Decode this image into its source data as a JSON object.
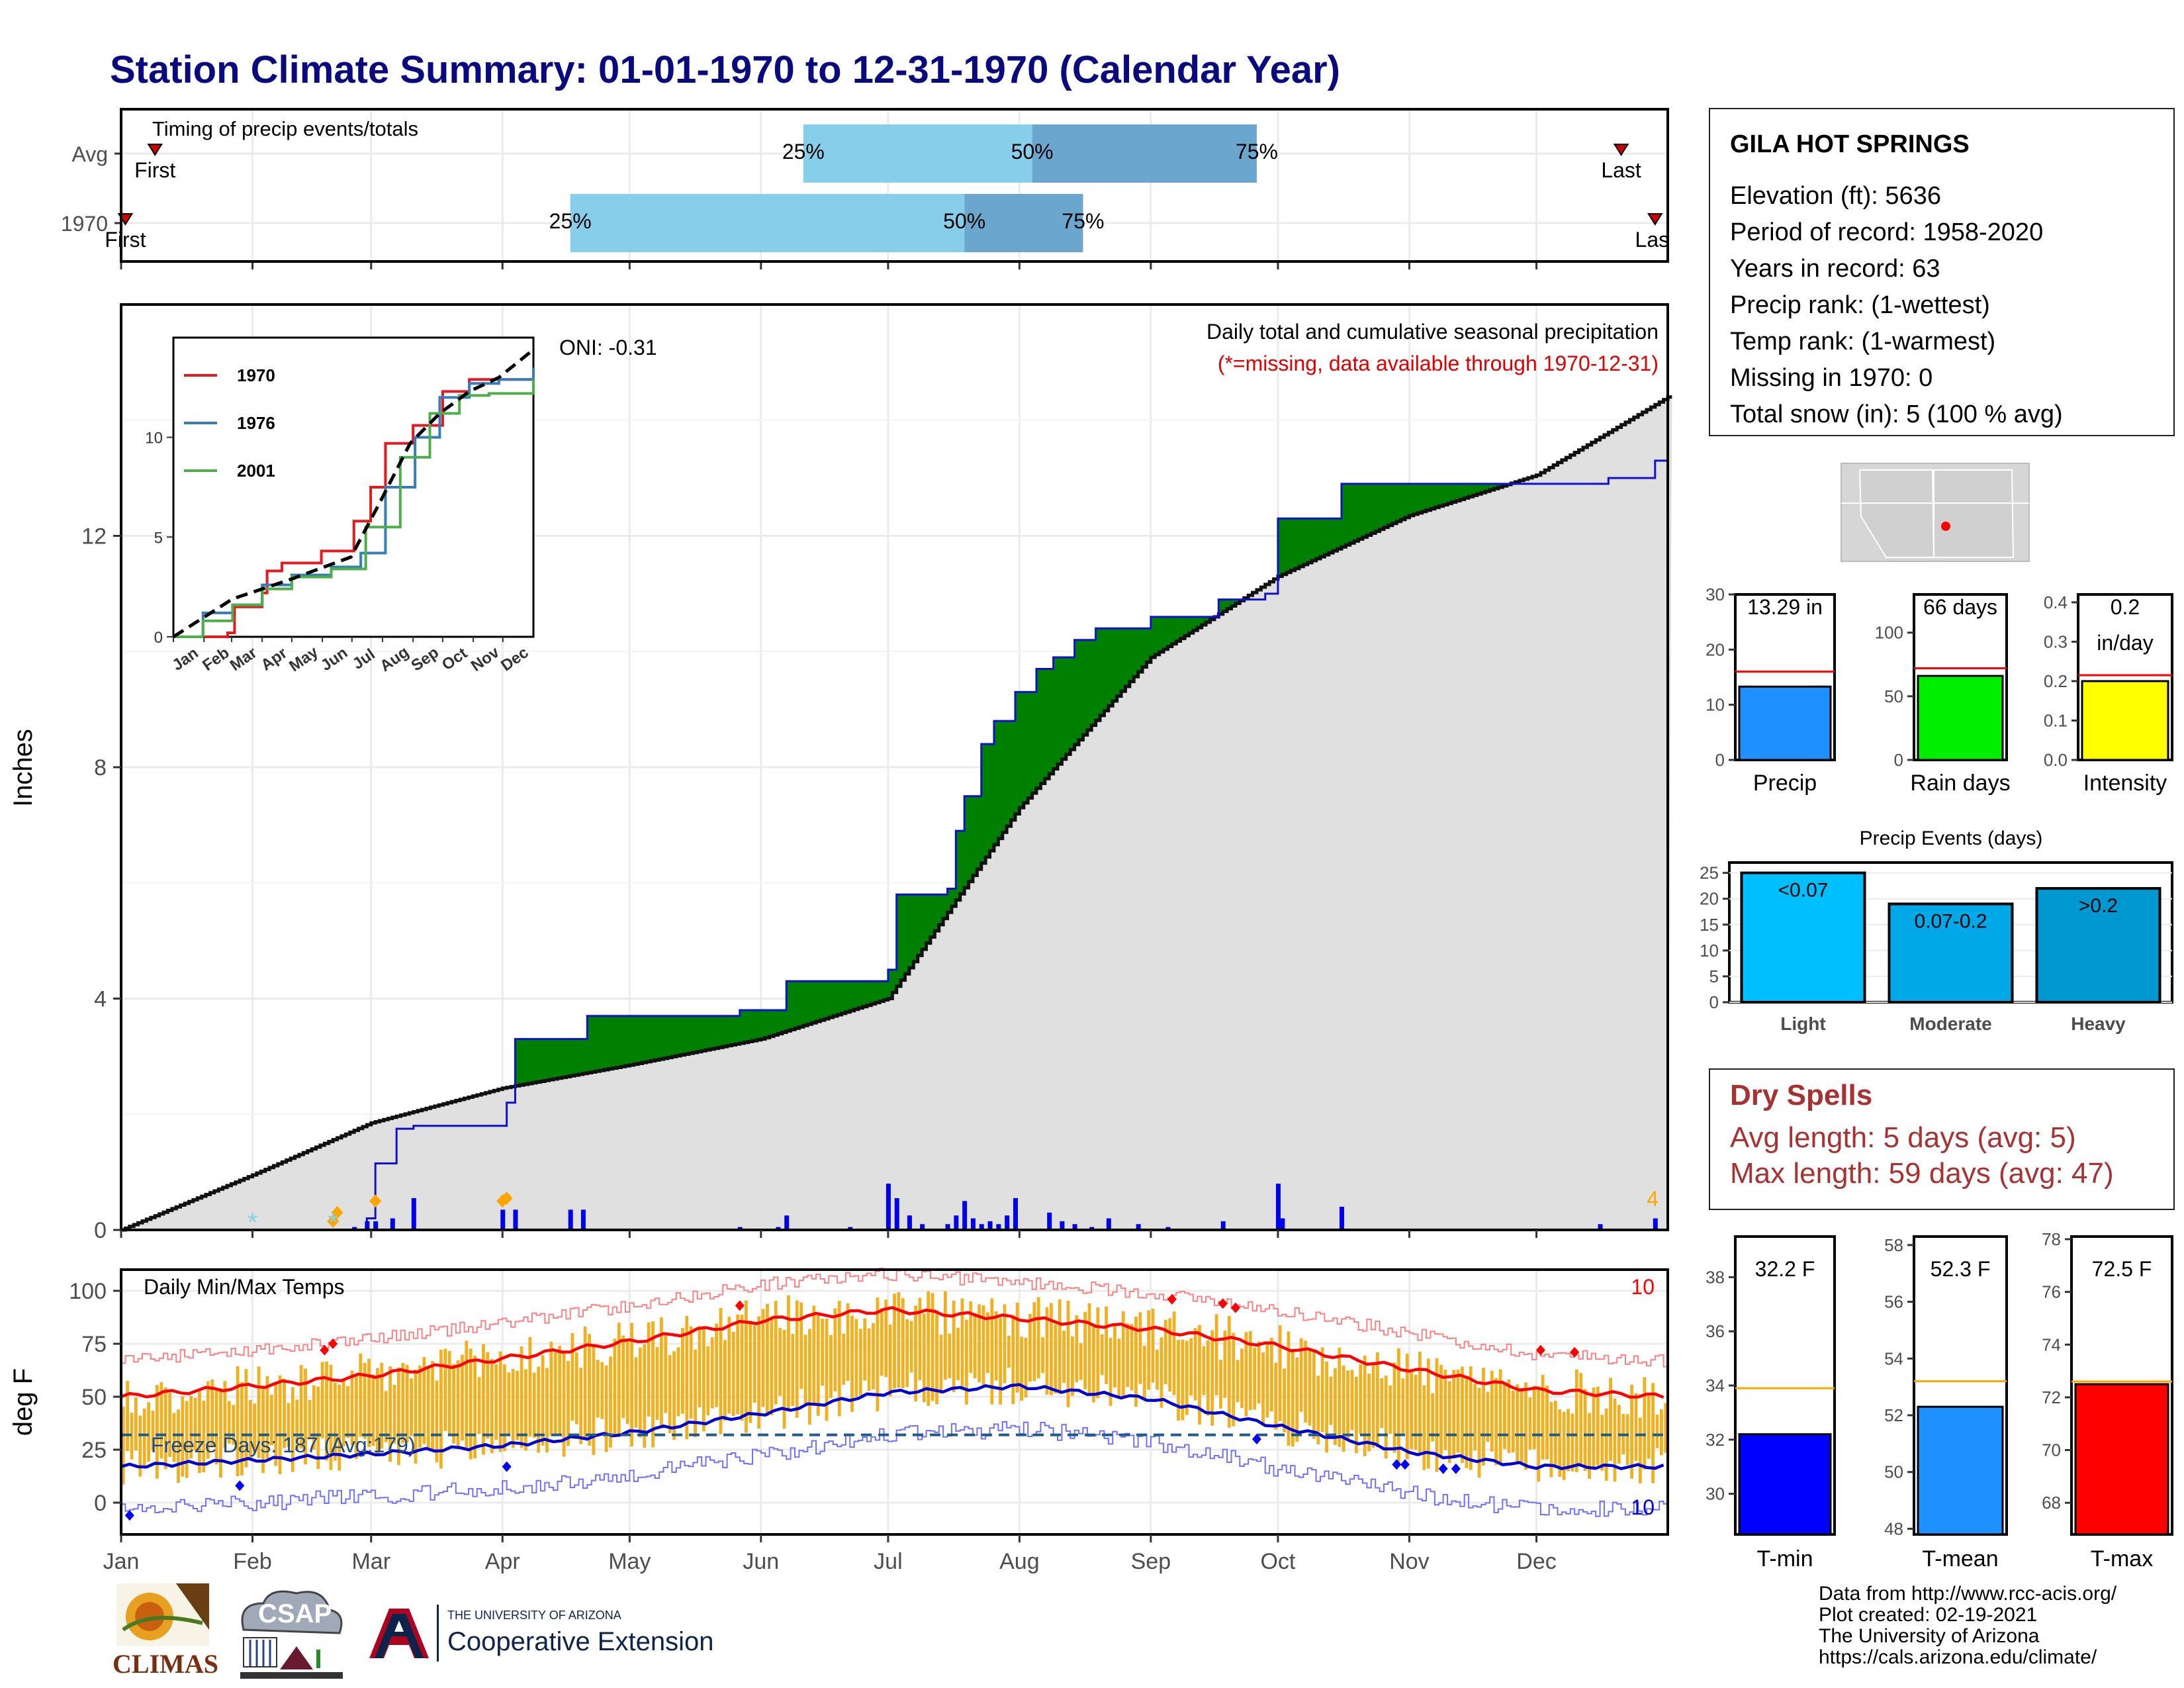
{
  "title": "Station Climate Summary: 01-01-1970 to 12-31-1970 (Calendar Year)",
  "station": {
    "name": "GILA HOT SPRINGS",
    "lines": [
      "Elevation (ft): 5636",
      "Period of record: 1958-2020",
      "Years in record: 63",
      "Precip rank:  (1-wettest)",
      "Temp rank:  (1-warmest)",
      "Missing in 1970: 0",
      "Total snow (in): 5 (100 % avg)"
    ]
  },
  "dry_spells": {
    "title": "Dry Spells",
    "avg_line": "Avg length: 5 days (avg: 5)",
    "max_line": "Max length: 59 days (avg: 47)"
  },
  "credits": [
    "Data from http://www.rcc-acis.org/",
    "Plot created: 02-19-2021",
    "The University of Arizona",
    "https://cals.arizona.edu/climate/"
  ],
  "logos": {
    "climas": "CLIMAS",
    "csap": "CSAP",
    "ua_small": "THE UNIVERSITY OF ARIZONA",
    "ua_big": "Cooperative Extension"
  },
  "colors": {
    "title": "#0a0a80",
    "wet": "#008000",
    "dry": "#7f5200",
    "normal_fill": "#e0e0e0",
    "cum_line": "#1010d0",
    "temp_bars": "#f0b020",
    "tmax_line": "#ff0000",
    "tmin_line": "#0000d0",
    "light_blue": "#87ceeb",
    "mid_blue": "#6aa6cd"
  },
  "chart_data": [
    {
      "id": "timing",
      "type": "bar",
      "title": "Timing of precip events/totals",
      "rows": [
        "Avg",
        "1970"
      ],
      "months": [
        "Jan",
        "Feb",
        "Mar",
        "Apr",
        "May",
        "Jun",
        "Jul",
        "Aug",
        "Sep",
        "Oct",
        "Nov",
        "Dec"
      ],
      "avg": {
        "first": 8,
        "p25": 161,
        "p50": 215,
        "p75": 268,
        "last": 354
      },
      "y1970": {
        "first": 1,
        "p25": 106,
        "p50": 199,
        "p75": 227,
        "last": 362
      },
      "labels": {
        "first": "First",
        "last": "Last",
        "p25": "25%",
        "p50": "50%",
        "p75": "75%"
      }
    },
    {
      "id": "precip_main",
      "type": "area",
      "title": "Daily total and cumulative seasonal precipitation",
      "subtitle": "(*=missing, data available through 1970-12-31)",
      "annotation": "ONI: -0.31",
      "count_label": "4",
      "ylabel": "Inches",
      "ylim": [
        0,
        16
      ],
      "yticks": [
        0,
        4,
        8,
        12
      ],
      "xticks": [
        "Jan",
        "Feb",
        "Mar",
        "Apr",
        "May",
        "Jun",
        "Jul",
        "Aug",
        "Sep",
        "Oct",
        "Nov",
        "Dec"
      ],
      "normal_cumulative": {
        "days": [
          0,
          31,
          59,
          90,
          120,
          151,
          181,
          212,
          243,
          273,
          304,
          334,
          365
        ],
        "values": [
          0,
          0.95,
          1.85,
          2.45,
          2.85,
          3.3,
          4.0,
          7.3,
          9.9,
          11.3,
          12.35,
          13.05,
          14.4
        ]
      },
      "cumulative_1970": [
        [
          0,
          0
        ],
        [
          58,
          0.2
        ],
        [
          60,
          1.15
        ],
        [
          65,
          1.75
        ],
        [
          69,
          1.8
        ],
        [
          85,
          1.8
        ],
        [
          91,
          2.2
        ],
        [
          93,
          3.3
        ],
        [
          107,
          3.3
        ],
        [
          110,
          3.7
        ],
        [
          146,
          3.8
        ],
        [
          157,
          4.3
        ],
        [
          181,
          4.5
        ],
        [
          183,
          5.8
        ],
        [
          195,
          5.9
        ],
        [
          197,
          6.9
        ],
        [
          199,
          7.5
        ],
        [
          203,
          8.4
        ],
        [
          206,
          8.8
        ],
        [
          211,
          9.3
        ],
        [
          216,
          9.7
        ],
        [
          220,
          9.9
        ],
        [
          225,
          10.2
        ],
        [
          230,
          10.4
        ],
        [
          243,
          10.6
        ],
        [
          259,
          10.9
        ],
        [
          270,
          11.0
        ],
        [
          273,
          12.3
        ],
        [
          288,
          12.9
        ],
        [
          318,
          12.9
        ],
        [
          351,
          13.0
        ],
        [
          362,
          13.3
        ],
        [
          365,
          13.3
        ]
      ],
      "daily_events": [
        [
          51,
          0.02
        ],
        [
          55,
          0.05
        ],
        [
          58,
          0.15
        ],
        [
          60,
          0.15
        ],
        [
          64,
          0.2
        ],
        [
          69,
          0.55
        ],
        [
          90,
          0.35
        ],
        [
          93,
          0.35
        ],
        [
          106,
          0.35
        ],
        [
          109,
          0.35
        ],
        [
          146,
          0.05
        ],
        [
          155,
          0.05
        ],
        [
          157,
          0.25
        ],
        [
          172,
          0.05
        ],
        [
          181,
          0.8
        ],
        [
          183,
          0.55
        ],
        [
          186,
          0.25
        ],
        [
          189,
          0.1
        ],
        [
          195,
          0.1
        ],
        [
          197,
          0.25
        ],
        [
          199,
          0.5
        ],
        [
          201,
          0.2
        ],
        [
          203,
          0.1
        ],
        [
          205,
          0.15
        ],
        [
          207,
          0.1
        ],
        [
          209,
          0.25
        ],
        [
          211,
          0.55
        ],
        [
          219,
          0.3
        ],
        [
          222,
          0.15
        ],
        [
          225,
          0.1
        ],
        [
          229,
          0.05
        ],
        [
          233,
          0.2
        ],
        [
          240,
          0.1
        ],
        [
          247,
          0.05
        ],
        [
          260,
          0.15
        ],
        [
          273,
          0.8
        ],
        [
          274,
          0.2
        ],
        [
          288,
          0.4
        ],
        [
          349,
          0.1
        ],
        [
          362,
          0.2
        ]
      ],
      "snow_markers": [
        [
          50,
          0.15
        ],
        [
          51,
          0.3
        ],
        [
          60,
          0.5
        ],
        [
          90,
          0.5
        ],
        [
          91,
          0.55
        ]
      ],
      "missing_markers": [
        31,
        50
      ]
    },
    {
      "id": "inset",
      "type": "line",
      "ylim": [
        0,
        15
      ],
      "yticks": [
        0,
        5,
        10
      ],
      "xticks": [
        "Jan",
        "Feb",
        "Mar",
        "Apr",
        "May",
        "Jun",
        "Jul",
        "Aug",
        "Sep",
        "Oct",
        "Nov",
        "Dec"
      ],
      "series": [
        {
          "name": "1970",
          "color": "#e41a1c",
          "points": [
            [
              0,
              0
            ],
            [
              55,
              0.2
            ],
            [
              62,
              1.5
            ],
            [
              90,
              2.2
            ],
            [
              95,
              3.3
            ],
            [
              110,
              3.7
            ],
            [
              150,
              4.3
            ],
            [
              183,
              5.8
            ],
            [
              200,
              7.5
            ],
            [
              215,
              9.7
            ],
            [
              243,
              10.6
            ],
            [
              273,
              12.3
            ],
            [
              300,
              12.9
            ],
            [
              365,
              13.3
            ]
          ]
        },
        {
          "name": "1976",
          "color": "#377eb8",
          "points": [
            [
              0,
              0
            ],
            [
              30,
              1.2
            ],
            [
              60,
              1.6
            ],
            [
              90,
              2.6
            ],
            [
              120,
              3.1
            ],
            [
              160,
              3.5
            ],
            [
              190,
              4.2
            ],
            [
              215,
              7.5
            ],
            [
              245,
              10.0
            ],
            [
              270,
              12.0
            ],
            [
              300,
              12.7
            ],
            [
              330,
              12.9
            ],
            [
              365,
              13.5
            ]
          ]
        },
        {
          "name": "2001",
          "color": "#4daf4a",
          "points": [
            [
              0,
              0
            ],
            [
              30,
              0.8
            ],
            [
              60,
              1.6
            ],
            [
              90,
              2.4
            ],
            [
              120,
              3.0
            ],
            [
              160,
              3.4
            ],
            [
              195,
              5.5
            ],
            [
              230,
              9.0
            ],
            [
              260,
              11.2
            ],
            [
              290,
              12.1
            ],
            [
              320,
              12.2
            ],
            [
              365,
              12.9
            ]
          ]
        }
      ],
      "avg_dashed": [
        [
          0,
          0
        ],
        [
          60,
          1.9
        ],
        [
          120,
          2.9
        ],
        [
          180,
          4.0
        ],
        [
          210,
          6.8
        ],
        [
          240,
          9.7
        ],
        [
          270,
          11.2
        ],
        [
          300,
          12.3
        ],
        [
          330,
          13.0
        ],
        [
          365,
          14.4
        ]
      ]
    },
    {
      "id": "temps",
      "type": "bar",
      "title": "Daily Min/Max Temps",
      "ylabel": "deg F",
      "ylim": [
        -15,
        110
      ],
      "yticks": [
        0,
        25,
        50,
        75,
        100
      ],
      "xticks": [
        "Jan",
        "Feb",
        "Mar",
        "Apr",
        "May",
        "Jun",
        "Jul",
        "Aug",
        "Sep",
        "Oct",
        "Nov",
        "Dec"
      ],
      "freeze_label": "Freeze Days: 187 (Avg:179)",
      "freeze_line": 32,
      "record_high_count": "10",
      "record_low_count": "10",
      "tmax_avg": {
        "days": [
          0,
          31,
          59,
          90,
          120,
          151,
          181,
          212,
          243,
          273,
          304,
          334,
          365
        ],
        "values": [
          50,
          55,
          60,
          68,
          76,
          86,
          91,
          87,
          82,
          74,
          63,
          53,
          50
        ]
      },
      "tmin_avg": {
        "days": [
          0,
          31,
          59,
          90,
          120,
          151,
          181,
          212,
          243,
          273,
          304,
          334,
          365
        ],
        "values": [
          17,
          20,
          23,
          27,
          33,
          42,
          52,
          55,
          49,
          36,
          24,
          17,
          17
        ]
      }
    },
    {
      "id": "precip_bars",
      "type": "bar",
      "categories": [
        "Precip",
        "Rain days",
        "Intensity"
      ],
      "panels": [
        {
          "label": "Precip",
          "value": 13.29,
          "text": "13.29 in",
          "avg": 16.0,
          "ylim": [
            0,
            30
          ],
          "yticks": [
            0,
            10,
            20,
            30
          ],
          "color": "#1e90ff"
        },
        {
          "label": "Rain days",
          "value": 66,
          "text": "66 days",
          "avg": 72,
          "ylim": [
            0,
            130
          ],
          "yticks": [
            0,
            50,
            100
          ],
          "color": "#00ee00"
        },
        {
          "label": "Intensity",
          "value": 0.2,
          "text": "0.2\nin/day",
          "avg": 0.215,
          "ylim": [
            0,
            0.42
          ],
          "yticks": [
            0.0,
            0.1,
            0.2,
            0.3,
            0.4
          ],
          "color": "#ffff00"
        }
      ]
    },
    {
      "id": "events",
      "type": "bar",
      "title": "Precip Events (days)",
      "categories": [
        "Light",
        "Moderate",
        "Heavy"
      ],
      "values": [
        25,
        19,
        22
      ],
      "bar_labels": [
        "<0.07",
        "0.07-0.2",
        ">0.2"
      ],
      "ylim": [
        0,
        27
      ],
      "yticks": [
        0,
        5,
        10,
        15,
        20,
        25
      ],
      "colors": [
        "#00bfff",
        "#00a8e8",
        "#0098d0"
      ]
    },
    {
      "id": "temp_bars",
      "type": "bar",
      "categories": [
        "T-min",
        "T-mean",
        "T-max"
      ],
      "panels": [
        {
          "label": "T-min",
          "value": 32.2,
          "text": "32.2 F",
          "avg": 33.9,
          "ylim": [
            28.5,
            39.5
          ],
          "yticks": [
            30,
            32,
            34,
            36,
            38
          ],
          "color": "#0000ff"
        },
        {
          "label": "T-mean",
          "value": 52.3,
          "text": "52.3 F",
          "avg": 53.2,
          "ylim": [
            47.8,
            58.3
          ],
          "yticks": [
            48,
            50,
            52,
            54,
            56,
            58
          ],
          "color": "#1e90ff"
        },
        {
          "label": "T-max",
          "value": 72.5,
          "text": "72.5 F",
          "avg": 72.6,
          "ylim": [
            66.8,
            78.1
          ],
          "yticks": [
            68,
            70,
            72,
            74,
            76,
            78
          ],
          "color": "#ff0000"
        }
      ]
    }
  ]
}
